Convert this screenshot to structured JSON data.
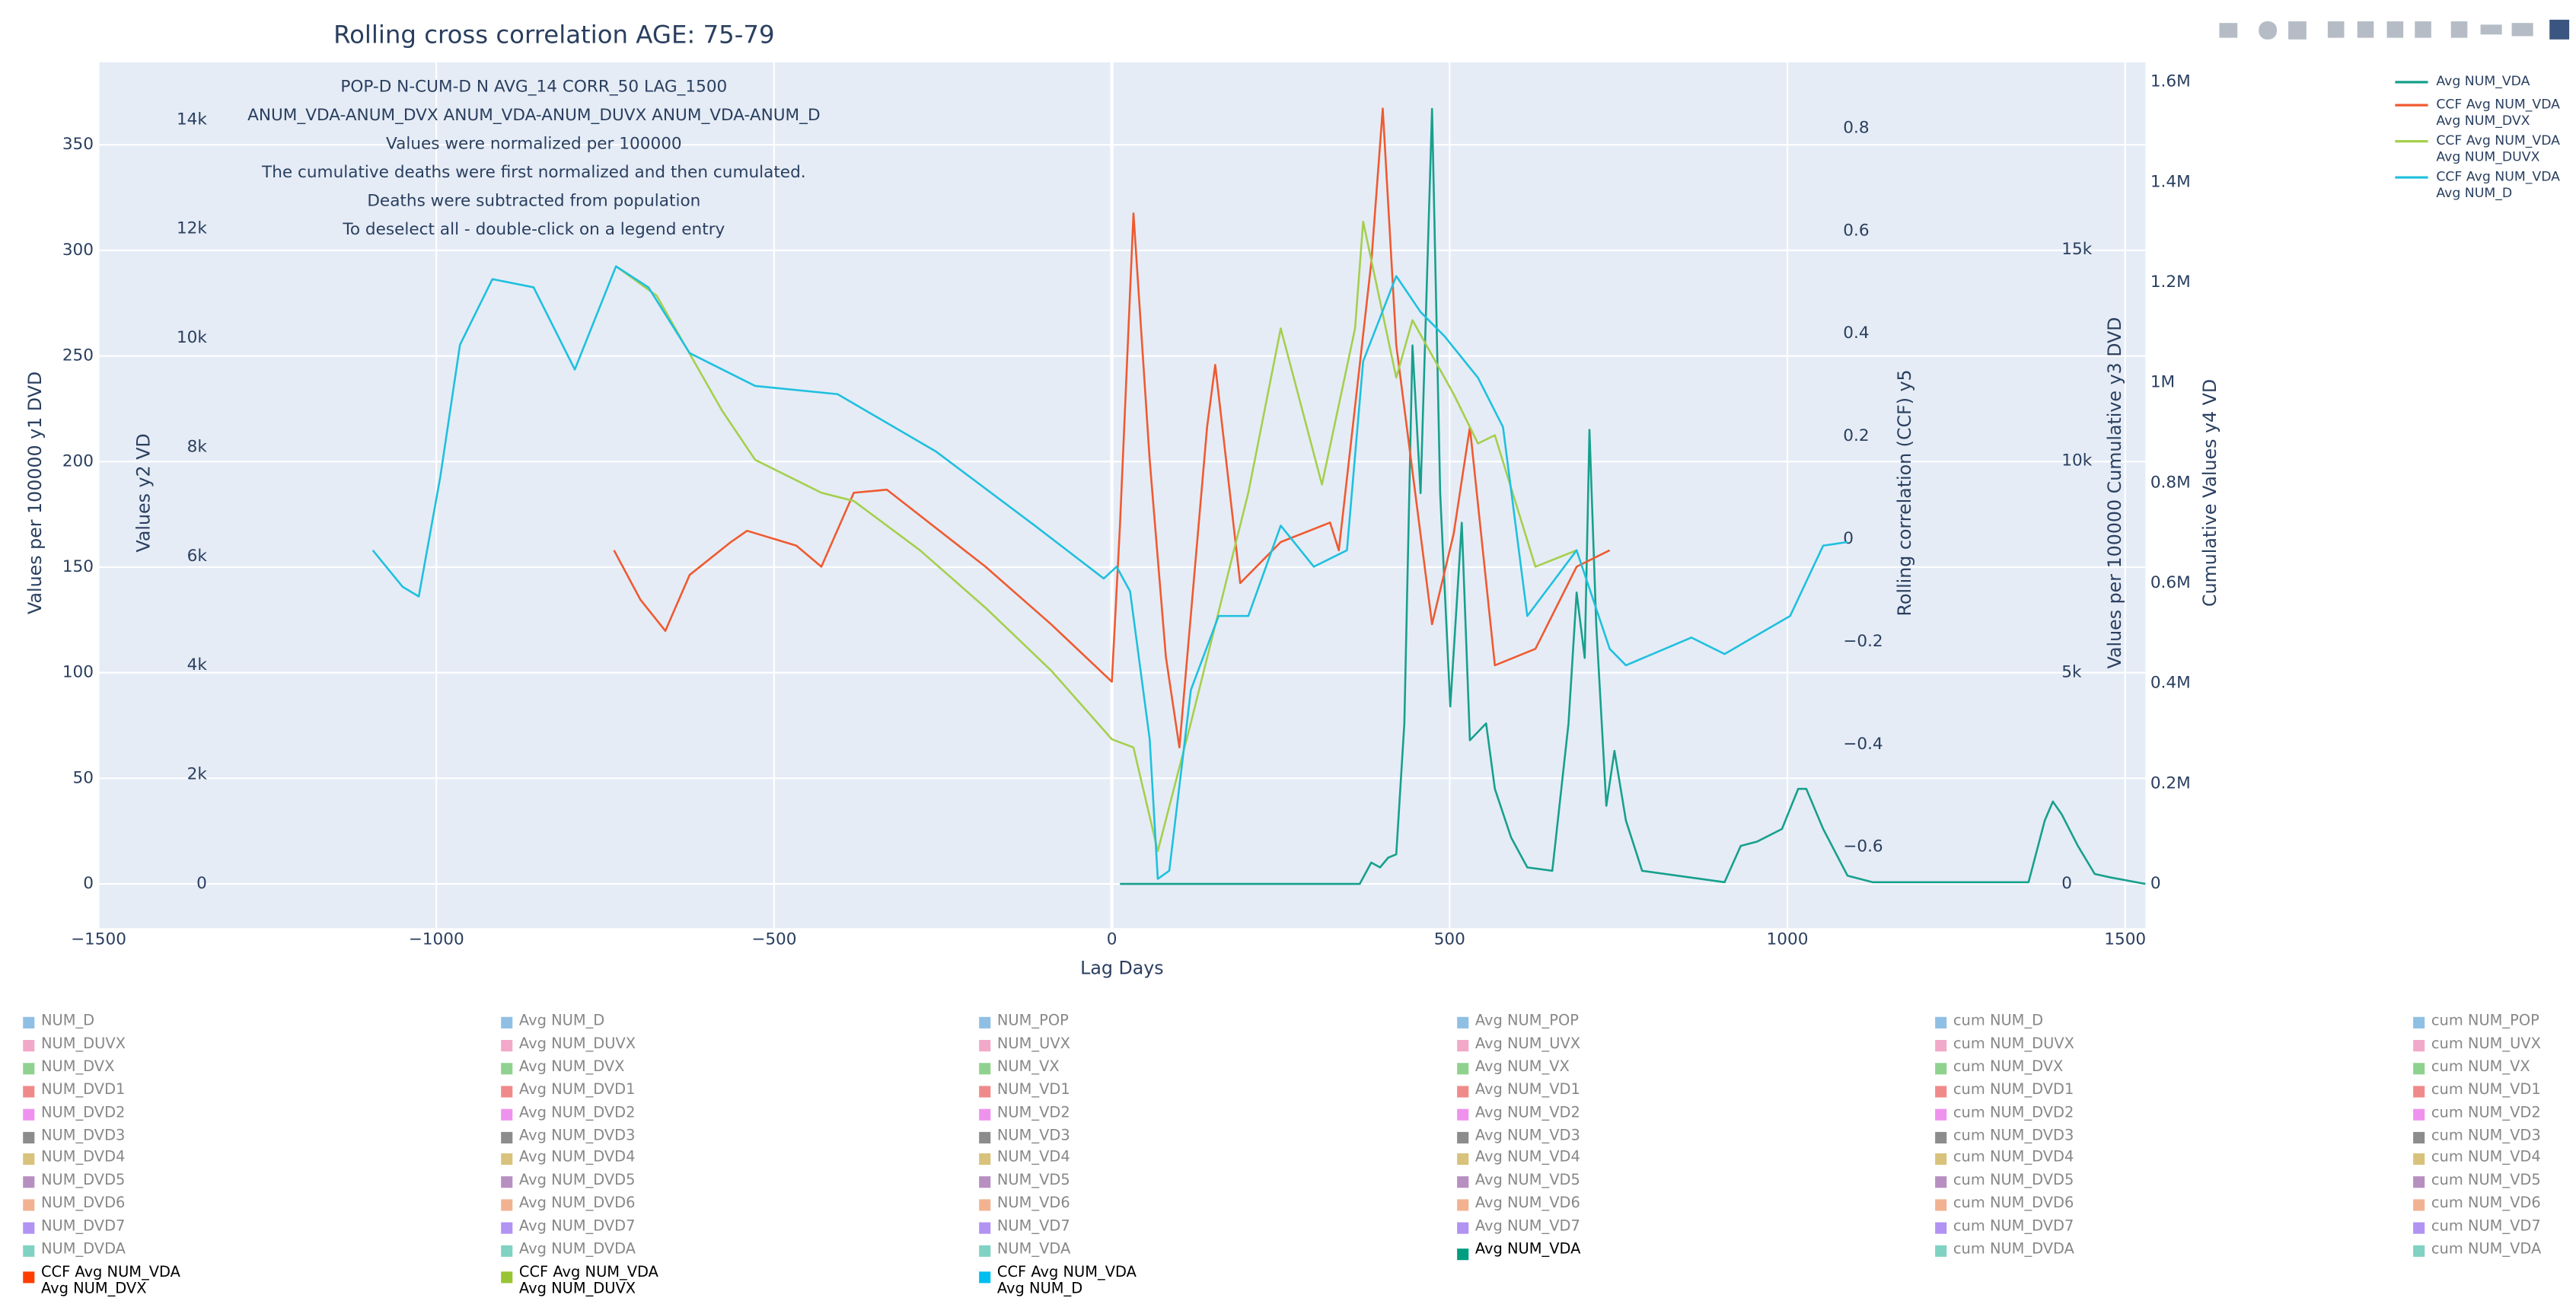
{
  "chart_data": {
    "type": "line",
    "title": "Rolling cross correlation AGE: 75-79",
    "annotations": [
      "POP-D N-CUM-D N AVG_14 CORR_50 LAG_1500",
      "ANUM_VDA-ANUM_DVX ANUM_VDA-ANUM_DUVX ANUM_VDA-ANUM_D",
      "Values were normalized per 100000",
      "The cumulative deaths were first normalized and then cumulated.",
      "Deaths were subtracted from population",
      "To deselect all - double-click on a legend entry"
    ],
    "x_label": "Lag Days",
    "y_label": "Values per 100000 y1 DVD",
    "y2_label": "Values y2 VD",
    "y3_label": "Values per 100000 Cumulative y3 DVD",
    "y4_label": "Cumulative Values y4 VD",
    "y5_label": "Rolling correlation (CCF) y5",
    "grid": true,
    "xlim": [
      -1500,
      1530
    ],
    "xticks": [
      {
        "value": -1500,
        "label": "−1500"
      },
      {
        "value": -1000,
        "label": "−1000"
      },
      {
        "value": -500,
        "label": "−500"
      },
      0,
      500,
      1000,
      1500
    ],
    "ylim": [
      -21,
      389
    ],
    "yticks": [
      0,
      50,
      100,
      150,
      200,
      250,
      300,
      350
    ],
    "y2lim": [
      -813,
      15050
    ],
    "y2ticks": [
      0,
      {
        "value": 2000,
        "label": "2k"
      },
      {
        "value": 4000,
        "label": "4k"
      },
      {
        "value": 6000,
        "label": "6k"
      },
      {
        "value": 8000,
        "label": "8k"
      },
      {
        "value": 10000,
        "label": "10k"
      },
      {
        "value": 12000,
        "label": "12k"
      },
      {
        "value": 14000,
        "label": "14k"
      }
    ],
    "y3lim": [
      -1050,
      19430
    ],
    "y3ticks": [
      0,
      {
        "value": 5000,
        "label": "5k"
      },
      {
        "value": 10000,
        "label": "10k"
      },
      {
        "value": 15000,
        "label": "15k"
      }
    ],
    "y4lim": [
      -88500,
      1639000
    ],
    "y4ticks": [
      0,
      {
        "value": 200000,
        "label": "0.2M"
      },
      {
        "value": 400000,
        "label": "0.4M"
      },
      {
        "value": 600000,
        "label": "0.6M"
      },
      {
        "value": 800000,
        "label": "0.8M"
      },
      {
        "value": 1000000,
        "label": "1M"
      },
      {
        "value": 1200000,
        "label": "1.2M"
      },
      {
        "value": 1400000,
        "label": "1.4M"
      },
      {
        "value": 1600000,
        "label": "1.6M"
      }
    ],
    "y5lim": [
      -0.758,
      0.928
    ],
    "y5ticks": [
      {
        "value": -0.6,
        "label": "−0.6"
      },
      {
        "value": -0.4,
        "label": "−0.4"
      },
      {
        "value": -0.2,
        "label": "−0.2"
      },
      0,
      0.2,
      0.4,
      0.6,
      0.8
    ],
    "series": [
      {
        "name": "Avg NUM_VDA",
        "color": "#17a08c",
        "axis": "y1",
        "x": [
          12,
          367,
          384,
          397,
          409,
          421,
          433,
          445,
          457,
          474,
          486,
          501,
          518,
          530,
          554,
          567,
          591,
          615,
          652,
          676,
          688,
          700,
          707,
          717,
          732,
          744,
          761,
          785,
          907,
          931,
          955,
          992,
          1016,
          1028,
          1053,
          1089,
          1126,
          1357,
          1381,
          1393,
          1406,
          1430,
          1455,
          1479,
          1530
        ],
        "values": [
          0,
          0,
          10.1,
          7.8,
          12.4,
          14,
          76,
          255,
          185,
          367,
          185,
          84,
          171,
          68,
          76,
          45,
          22,
          7.8,
          6.2,
          76,
          138,
          107,
          215,
          123,
          37,
          63,
          30,
          6.2,
          0.8,
          18,
          20,
          26,
          45,
          45,
          26,
          3.9,
          0.8,
          0.8,
          30,
          39,
          33,
          18,
          4.7,
          3,
          0
        ]
      },
      {
        "name": "CCF Avg NUM_VDA\nAvg NUM_DVX",
        "color": "#ef5a30",
        "axis": "y5",
        "x": [
          -737,
          -698,
          -661,
          -625,
          -564,
          -540,
          -467,
          -430,
          -382,
          -333,
          -187,
          -90,
          0,
          12,
          32,
          56,
          80,
          100,
          141,
          153,
          190,
          250,
          323,
          336,
          384,
          401,
          421,
          474,
          506,
          530,
          567,
          627,
          688,
          737
        ],
        "values": [
          -0.022,
          -0.118,
          -0.179,
          -0.07,
          -0.006,
          0.016,
          -0.013,
          -0.054,
          0.09,
          0.096,
          -0.054,
          -0.166,
          -0.278,
          0.026,
          0.634,
          0.154,
          -0.23,
          -0.406,
          0.218,
          0.339,
          -0.086,
          -0.006,
          0.032,
          -0.022,
          0.538,
          0.838,
          0.378,
          -0.166,
          0.01,
          0.218,
          -0.246,
          -0.214,
          -0.054,
          -0.022
        ]
      },
      {
        "name": "CCF Avg NUM_VDA\nAvg NUM_DUVX",
        "color": "#a5cf4c",
        "axis": "y5",
        "x": [
          -734,
          -674,
          -577,
          -528,
          -430,
          -382,
          -284,
          -187,
          -90,
          0,
          32,
          68,
          117,
          202,
          250,
          311,
          360,
          372,
          421,
          445,
          506,
          542,
          567,
          627,
          688
        ],
        "values": [
          0.531,
          0.474,
          0.25,
          0.154,
          0.09,
          0.074,
          -0.022,
          -0.134,
          -0.256,
          -0.39,
          -0.406,
          -0.608,
          -0.358,
          0.09,
          0.41,
          0.106,
          0.41,
          0.618,
          0.314,
          0.426,
          0.282,
          0.186,
          0.202,
          -0.054,
          -0.022
        ]
      },
      {
        "name": "CCF Avg NUM_VDA\nAvg NUM_D",
        "color": "#1fc0de",
        "axis": "y5",
        "x": [
          -1094,
          -1050,
          -1026,
          -994,
          -965,
          -917,
          -856,
          -795,
          -734,
          -686,
          -625,
          -528,
          -406,
          -260,
          -114,
          -12,
          7,
          27,
          56,
          68,
          85,
          117,
          158,
          202,
          250,
          299,
          348,
          372,
          421,
          457,
          493,
          542,
          579,
          615,
          688,
          737,
          761,
          858,
          907,
          1004,
          1053,
          1089
        ],
        "values": [
          -0.022,
          -0.093,
          -0.112,
          0.122,
          0.378,
          0.506,
          0.49,
          0.33,
          0.531,
          0.49,
          0.362,
          0.298,
          0.282,
          0.17,
          0.026,
          -0.077,
          -0.054,
          -0.102,
          -0.39,
          -0.662,
          -0.646,
          -0.294,
          -0.15,
          -0.15,
          0.026,
          -0.054,
          -0.022,
          0.346,
          0.512,
          0.442,
          0.394,
          0.314,
          0.218,
          -0.15,
          -0.022,
          -0.214,
          -0.246,
          -0.192,
          -0.224,
          -0.15,
          -0.013,
          -0.006
        ]
      }
    ],
    "bottom_legend": {
      "row_colors": [
        "#8fc0e4",
        "#f2a9c9",
        "#8fd28f",
        "#f08a8a",
        "#ee92ee",
        "#8c8c8c",
        "#d8c27c",
        "#b78fc0",
        "#f2b292",
        "#b193f2",
        "#80d2c2"
      ],
      "columns": [
        {
          "hidden": [
            "NUM_D",
            "NUM_DUVX",
            "NUM_DVX",
            "NUM_DVD1",
            "NUM_DVD2",
            "NUM_DVD3",
            "NUM_DVD4",
            "NUM_DVD5",
            "NUM_DVD6",
            "NUM_DVD7",
            "NUM_DVDA"
          ],
          "visible": [
            {
              "name": "CCF Avg NUM_VDA\nAvg NUM_DVX",
              "color": "#ff3d00"
            }
          ]
        },
        {
          "hidden": [
            "Avg NUM_D",
            "Avg NUM_DUVX",
            "Avg NUM_DVX",
            "Avg NUM_DVD1",
            "Avg NUM_DVD2",
            "Avg NUM_DVD3",
            "Avg NUM_DVD4",
            "Avg NUM_DVD5",
            "Avg NUM_DVD6",
            "Avg NUM_DVD7",
            "Avg NUM_DVDA"
          ],
          "visible": [
            {
              "name": "CCF Avg NUM_VDA\nAvg NUM_DUVX",
              "color": "#99c433"
            }
          ]
        },
        {
          "hidden": [
            "NUM_POP",
            "NUM_UVX",
            "NUM_VX",
            "NUM_VD1",
            "NUM_VD2",
            "NUM_VD3",
            "NUM_VD4",
            "NUM_VD5",
            "NUM_VD6",
            "NUM_VD7",
            "NUM_VDA"
          ],
          "visible": [
            {
              "name": "CCF Avg NUM_VDA\nAvg NUM_D",
              "color": "#00bff0"
            }
          ]
        },
        {
          "hidden": [
            "Avg NUM_POP",
            "Avg NUM_UVX",
            "Avg NUM_VX",
            "Avg NUM_VD1",
            "Avg NUM_VD2",
            "Avg NUM_VD3",
            "Avg NUM_VD4",
            "Avg NUM_VD5",
            "Avg NUM_VD6",
            "Avg NUM_VD7"
          ],
          "visible": [
            {
              "name": "Avg NUM_VDA",
              "color": "#009e80"
            }
          ]
        },
        {
          "hidden": [
            "cum NUM_D",
            "cum NUM_DUVX",
            "cum NUM_DVX",
            "cum NUM_DVD1",
            "cum NUM_DVD2",
            "cum NUM_DVD3",
            "cum NUM_DVD4",
            "cum NUM_DVD5",
            "cum NUM_DVD6",
            "cum NUM_DVD7",
            "cum NUM_DVDA"
          ],
          "visible": []
        },
        {
          "hidden": [
            "cum NUM_POP",
            "cum NUM_UVX",
            "cum NUM_VX",
            "cum NUM_VD1",
            "cum NUM_VD2",
            "cum NUM_VD3",
            "cum NUM_VD4",
            "cum NUM_VD5",
            "cum NUM_VD6",
            "cum NUM_VD7",
            "cum NUM_VDA"
          ],
          "visible": []
        }
      ]
    }
  }
}
